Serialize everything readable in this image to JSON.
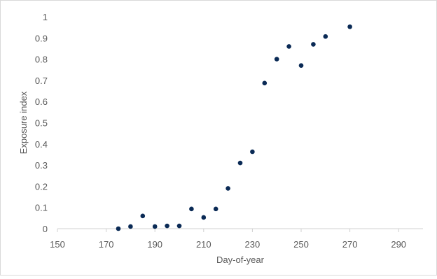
{
  "chart_data": {
    "type": "scatter",
    "xlabel": "Day-of-year",
    "ylabel": "Exposure index",
    "xlim": [
      150,
      300
    ],
    "ylim": [
      0,
      1
    ],
    "x_ticks": [
      150,
      170,
      190,
      210,
      230,
      250,
      270,
      290
    ],
    "y_ticks": [
      0,
      0.1,
      0.2,
      0.3,
      0.4,
      0.5,
      0.6,
      0.7,
      0.8,
      0.9,
      1
    ],
    "x_tick_labels": [
      "150",
      "170",
      "190",
      "210",
      "230",
      "250",
      "270",
      "290"
    ],
    "y_tick_labels": [
      "0",
      "0.1",
      "0.2",
      "0.3",
      "0.4",
      "0.5",
      "0.6",
      "0.7",
      "0.8",
      "0.9",
      "1"
    ],
    "grid": false,
    "legend": "none",
    "marker_color": "#0a2a55",
    "axis_color": "#d0d0d0",
    "text_color": "#595959",
    "series": [
      {
        "points": [
          {
            "x": 175,
            "y": 0.0
          },
          {
            "x": 180,
            "y": 0.01
          },
          {
            "x": 185,
            "y": 0.06
          },
          {
            "x": 190,
            "y": 0.01
          },
          {
            "x": 195,
            "y": 0.013
          },
          {
            "x": 200,
            "y": 0.013
          },
          {
            "x": 205,
            "y": 0.093
          },
          {
            "x": 210,
            "y": 0.053
          },
          {
            "x": 215,
            "y": 0.093
          },
          {
            "x": 220,
            "y": 0.19
          },
          {
            "x": 225,
            "y": 0.31
          },
          {
            "x": 230,
            "y": 0.363
          },
          {
            "x": 235,
            "y": 0.687
          },
          {
            "x": 240,
            "y": 0.8
          },
          {
            "x": 245,
            "y": 0.86
          },
          {
            "x": 250,
            "y": 0.77
          },
          {
            "x": 255,
            "y": 0.87
          },
          {
            "x": 260,
            "y": 0.907
          },
          {
            "x": 270,
            "y": 0.953
          }
        ]
      }
    ]
  }
}
